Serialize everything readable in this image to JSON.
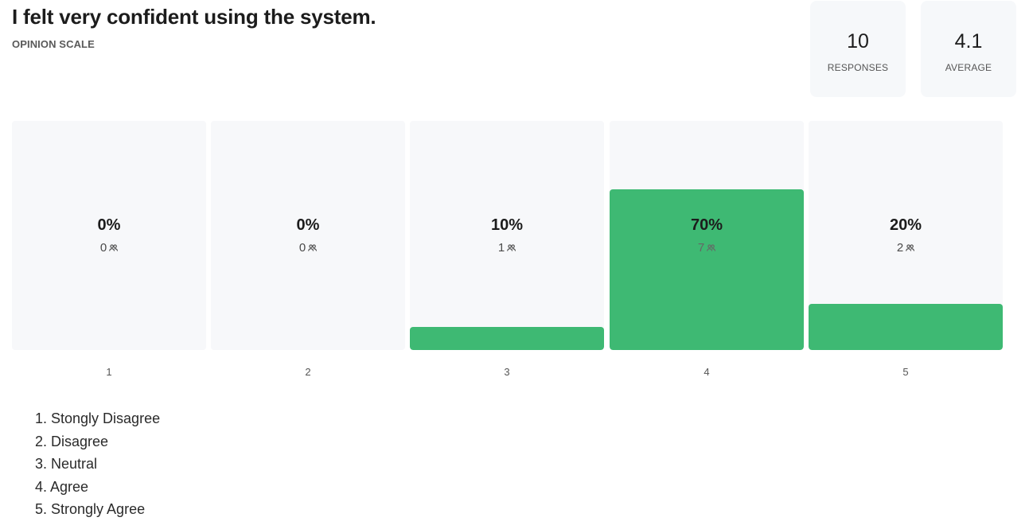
{
  "header": {
    "title": "I felt very confident using the system.",
    "subtitle": "OPINION SCALE"
  },
  "stats": [
    {
      "value": "10",
      "label": "RESPONSES"
    },
    {
      "value": "4.1",
      "label": "AVERAGE"
    }
  ],
  "people_icon": "people-icon",
  "colors": {
    "bar_fill": "#3eb973",
    "column_bg": "#f7f8fa"
  },
  "chart_data": {
    "type": "bar",
    "categories": [
      "1",
      "2",
      "3",
      "4",
      "5"
    ],
    "values": [
      0,
      0,
      10,
      70,
      20
    ],
    "percent_labels": [
      "0%",
      "0%",
      "10%",
      "70%",
      "20%"
    ],
    "counts": [
      "0",
      "0",
      "1",
      "7",
      "2"
    ],
    "ylim": [
      0,
      100
    ],
    "title": "I felt very confident using the system.",
    "subtitle": "OPINION SCALE"
  },
  "legend": [
    "1. Stongly Disagree",
    "2. Disagree",
    "3. Neutral",
    "4. Agree",
    "5. Strongly Agree"
  ]
}
